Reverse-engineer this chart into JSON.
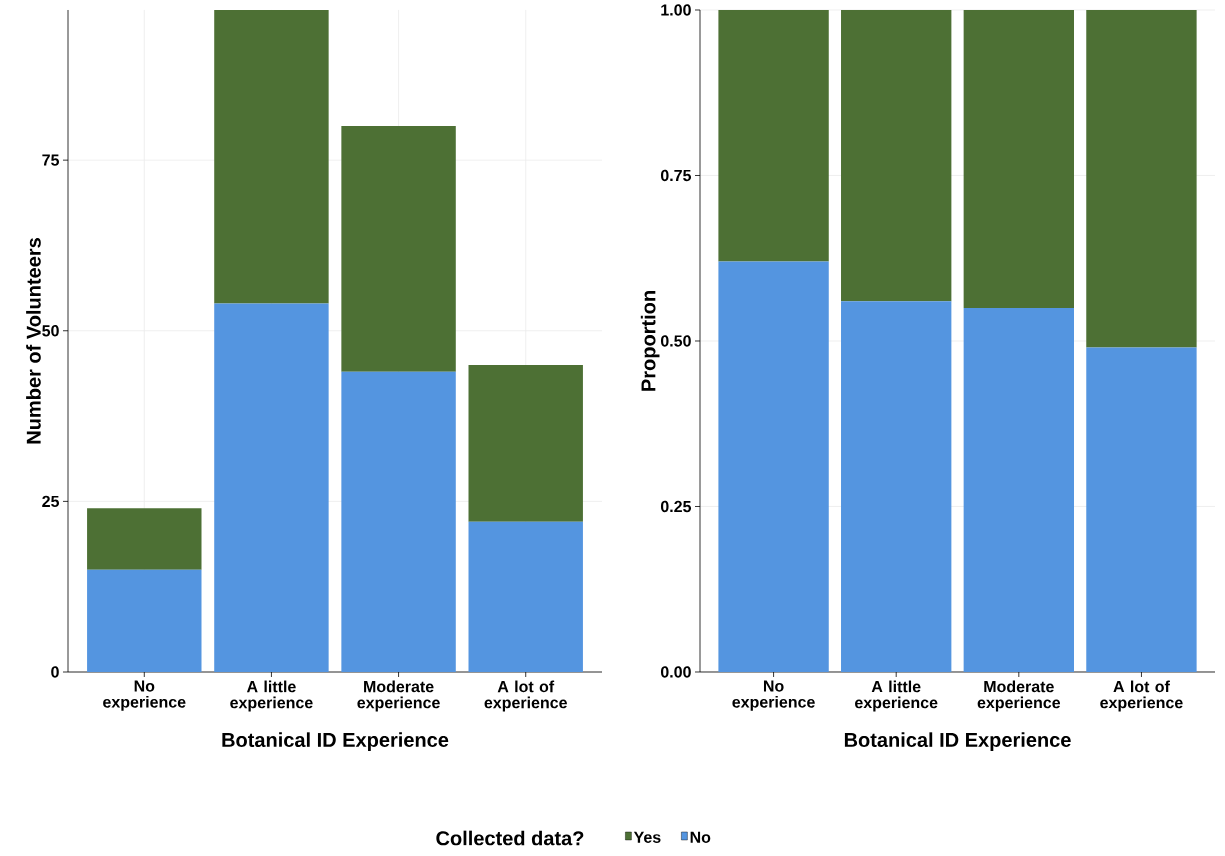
{
  "chart_data": [
    {
      "type": "bar",
      "stacked": true,
      "xlabel": "Botanical ID Experience",
      "ylabel": "Number of Volunteers",
      "categories": [
        "No experience",
        "A little experience",
        "Moderate experience",
        "A lot of experience"
      ],
      "ylim": [
        0,
        97
      ],
      "yticks": [
        0,
        25,
        50,
        75
      ],
      "grid": true,
      "legend": "bottom",
      "legend_title": "Collected data?",
      "series": [
        {
          "name": "No",
          "color": "#5495e0",
          "values": [
            15,
            54,
            44,
            22
          ]
        },
        {
          "name": "Yes",
          "color": "#4d7034",
          "values": [
            9,
            43,
            36,
            23
          ]
        }
      ]
    },
    {
      "type": "bar",
      "stacked": true,
      "xlabel": "Botanical ID Experience",
      "ylabel": "Proportion",
      "categories": [
        "No experience",
        "A little experience",
        "Moderate experience",
        "A lot of experience"
      ],
      "ylim": [
        0,
        1
      ],
      "yticks": [
        {
          "value": 0,
          "label": "0.00"
        },
        {
          "value": 0.25,
          "label": "0.25"
        },
        {
          "value": 0.5,
          "label": "0.50"
        },
        {
          "value": 0.75,
          "label": "0.75"
        },
        {
          "value": 1,
          "label": "1.00"
        }
      ],
      "grid": "y",
      "series": [
        {
          "color": "#5495e0",
          "values": [
            0.62,
            0.56,
            0.55,
            0.49
          ]
        },
        {
          "color": "#4d7034",
          "values": [
            0.38,
            0.44,
            0.45,
            0.51
          ]
        }
      ]
    }
  ]
}
